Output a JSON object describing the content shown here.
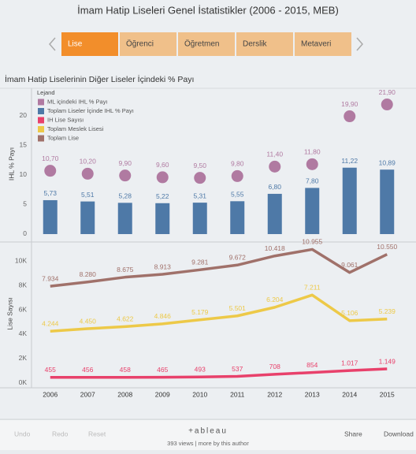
{
  "title": "İmam Hatip Liseleri Genel İstatistikler (2006 - 2015, MEB)",
  "tabs": [
    "Lise",
    "Öğrenci",
    "Öğretmen",
    "Derslik",
    "Metaveri"
  ],
  "footer": {
    "undo": "Undo",
    "redo": "Redo",
    "reset": "Reset",
    "logo": "+ableau",
    "views": "393 views | more by this author",
    "share": "Share",
    "download": "Download"
  },
  "chart_data": [
    {
      "type": "bar",
      "title": "İmam Hatip Liselerinin Diğer Liseler İçindeki % Payı",
      "y_label": "IHL % Payı",
      "legend_title": "Lejand",
      "legend": "top-left",
      "ylim": [
        -1.2,
        24.5
      ],
      "yticks": [
        0,
        5,
        10,
        15,
        20
      ],
      "grid": false,
      "series": [
        {
          "name": "ML içindeki IHL % Payı",
          "type": "circle",
          "color": "#b07aa1",
          "values": [
            10.7,
            10.2,
            9.9,
            9.6,
            9.5,
            9.8,
            11.4,
            11.8,
            19.9,
            21.9
          ],
          "value_labels": [
            "10,70",
            "10,20",
            "9,90",
            "9,60",
            "9,50",
            "9,80",
            "11,40",
            "11,80",
            "19,90",
            "21,90"
          ]
        },
        {
          "name": "Toplam Liseler İçinde IHL % Payı",
          "type": "bar",
          "color": "#4e79a7",
          "values": [
            5.73,
            5.51,
            5.28,
            5.22,
            5.31,
            5.55,
            6.8,
            7.8,
            11.22,
            10.89
          ],
          "value_labels": [
            "5,73",
            "5,51",
            "5,28",
            "5,22",
            "5,31",
            "5,55",
            "6,80",
            "7,80",
            "11,22",
            "10,89"
          ]
        }
      ]
    },
    {
      "type": "line",
      "y_label": "Lise Sayısı",
      "categories": [
        "2006",
        "2007",
        "2008",
        "2009",
        "2010",
        "2011",
        "2012",
        "2013",
        "2014",
        "2015"
      ],
      "ylim": [
        -400,
        11500
      ],
      "yticks": [
        {
          "value": 0,
          "label": "0K"
        },
        {
          "value": 2000,
          "label": "2K"
        },
        {
          "value": 4000,
          "label": "4K"
        },
        {
          "value": 6000,
          "label": "6K"
        },
        {
          "value": 8000,
          "label": "8K"
        },
        {
          "value": 10000,
          "label": "10K"
        }
      ],
      "grid": false,
      "series": [
        {
          "name": "IH Lise Sayısı",
          "color": "#e8416b",
          "values": [
            455,
            456,
            458,
            465,
            493,
            537,
            708,
            854,
            1017,
            1149
          ],
          "value_labels": [
            "455",
            "456",
            "458",
            "465",
            "493",
            "537",
            "708",
            "854",
            "1.017",
            "1.149"
          ]
        },
        {
          "name": "Toplam Meslek Lisesi",
          "color": "#edc948",
          "values": [
            4244,
            4450,
            4622,
            4846,
            5179,
            5501,
            6204,
            7211,
            5106,
            5239
          ],
          "value_labels": [
            "4.244",
            "4.450",
            "4.622",
            "4.846",
            "5.179",
            "5.501",
            "6.204",
            "7.211",
            "5.106",
            "5.239"
          ]
        },
        {
          "name": "Toplam Lise",
          "color": "#a0716a",
          "values": [
            7934,
            8280,
            8675,
            8913,
            9281,
            9672,
            10418,
            10955,
            9061,
            10550
          ],
          "value_labels": [
            "7.934",
            "8.280",
            "8.675",
            "8.913",
            "9.281",
            "9.672",
            "10.418",
            "10.955",
            "9.061",
            "10.550"
          ]
        }
      ]
    }
  ]
}
